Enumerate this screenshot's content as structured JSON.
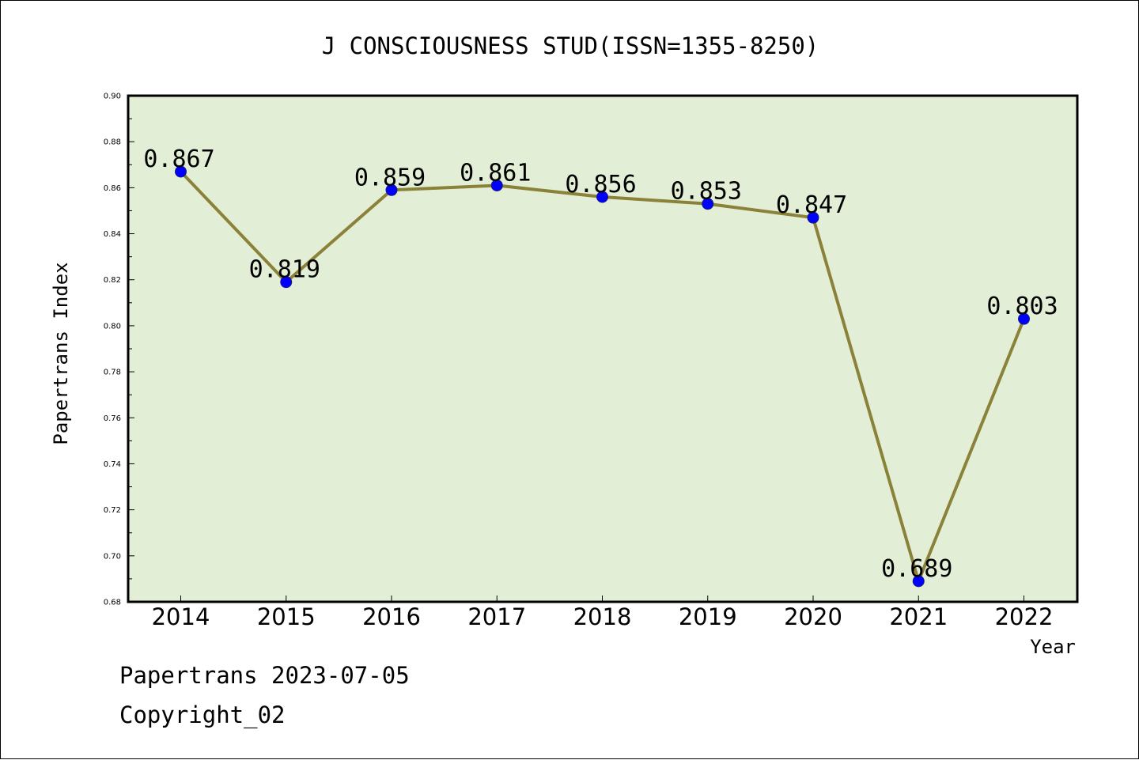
{
  "chart_data": {
    "type": "line",
    "title": "J CONSCIOUSNESS STUD(ISSN=1355-8250)",
    "xlabel": "Year",
    "ylabel": "Papertrans Index",
    "categories": [
      "2014",
      "2015",
      "2016",
      "2017",
      "2018",
      "2019",
      "2020",
      "2021",
      "2022"
    ],
    "series": [
      {
        "values": [
          0.867,
          0.819,
          0.859,
          0.861,
          0.856,
          0.853,
          0.847,
          0.689,
          0.803
        ],
        "data_labels": [
          "0.867",
          "0.819",
          "0.859",
          "0.861",
          "0.856",
          "0.853",
          "0.847",
          "0.689",
          "0.803"
        ]
      }
    ],
    "ylim": [
      0.68,
      0.9
    ],
    "yticks": [
      0.68,
      0.7,
      0.72,
      0.74,
      0.76,
      0.78,
      0.8,
      0.82,
      0.84,
      0.86,
      0.88,
      0.9
    ],
    "ytick_labels": [
      "0.68",
      "0.70",
      "0.72",
      "0.74",
      "0.76",
      "0.78",
      "0.80",
      "0.82",
      "0.84",
      "0.86",
      "0.88",
      "0.90"
    ],
    "grid": false,
    "legend": "none",
    "colors": {
      "plot_background": "#e2efd6",
      "line": "#8b8239",
      "marker": "#0000ff"
    }
  },
  "footer": {
    "date_text": "Papertrans 2023-07-05",
    "copyright_text": "Copyright_02"
  }
}
